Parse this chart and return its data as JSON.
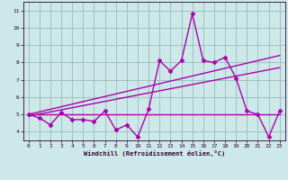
{
  "xlabel": "Windchill (Refroidissement éolien,°C)",
  "background_color": "#cce8e8",
  "line_color": "#aa00aa",
  "grid_color": "#99bbbb",
  "xlim": [
    -0.5,
    23.5
  ],
  "ylim": [
    3.5,
    11.5
  ],
  "xticks": [
    0,
    1,
    2,
    3,
    4,
    5,
    6,
    7,
    8,
    9,
    10,
    11,
    12,
    13,
    14,
    15,
    16,
    17,
    18,
    19,
    20,
    21,
    22,
    23
  ],
  "yticks": [
    4,
    5,
    6,
    7,
    8,
    9,
    10,
    11
  ],
  "series1_x": [
    0,
    1,
    2,
    3,
    4,
    5,
    6,
    7,
    8,
    9,
    10,
    11,
    12,
    13,
    14,
    15,
    16,
    17,
    18,
    19,
    20,
    21,
    22,
    23
  ],
  "series1_y": [
    5.0,
    4.8,
    4.4,
    5.1,
    4.7,
    4.7,
    4.6,
    5.2,
    4.1,
    4.4,
    3.7,
    5.3,
    8.1,
    7.5,
    8.1,
    10.8,
    8.1,
    8.0,
    8.3,
    7.1,
    5.2,
    5.0,
    3.7,
    5.2
  ],
  "trend1_x": [
    0,
    23
  ],
  "trend1_y": [
    5.0,
    5.0
  ],
  "trend2_x": [
    0,
    23
  ],
  "trend2_y": [
    4.9,
    7.7
  ],
  "trend3_x": [
    0,
    23
  ],
  "trend3_y": [
    5.0,
    8.4
  ],
  "marker": "D",
  "markersize": 2.5,
  "linewidth": 1.0
}
